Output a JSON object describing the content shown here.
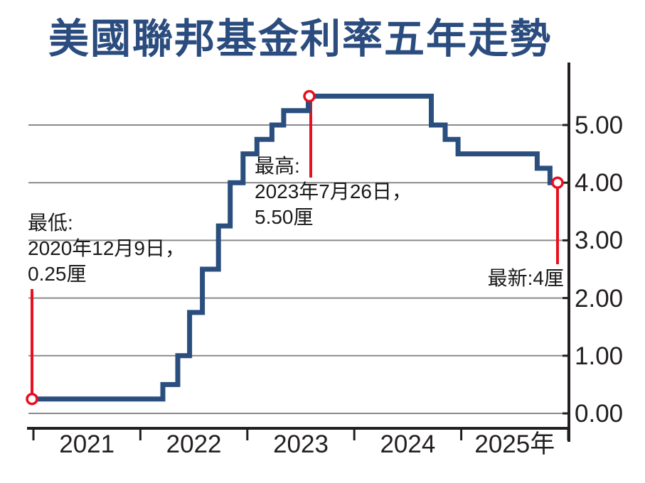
{
  "chart_data": {
    "type": "line",
    "line_style": "step",
    "title": "美國聯邦基金利率五年走勢",
    "x_tick_labels": [
      "2021",
      "2022",
      "2023",
      "2024",
      "2025年"
    ],
    "x_axis_tick_years": [
      2021,
      2022,
      2023,
      2024,
      2025,
      2026
    ],
    "y_tick_labels": [
      "0.00",
      "1.00",
      "2.00",
      "3.00",
      "4.00",
      "5.00"
    ],
    "y_ticks": [
      0,
      1,
      2,
      3,
      4,
      5
    ],
    "xlim": [
      2020.9,
      2026.05
    ],
    "ylim": [
      0,
      6.05
    ],
    "grid": "horizontal-only",
    "y_axis_side": "right",
    "legend": "none",
    "series": [
      {
        "name": "美國聯邦基金利率",
        "color": "#2a4e7e",
        "steps": [
          [
            2020.94,
            0.25
          ],
          [
            2022.21,
            0.5
          ],
          [
            2022.35,
            1.0
          ],
          [
            2022.46,
            1.75
          ],
          [
            2022.58,
            2.5
          ],
          [
            2022.73,
            3.25
          ],
          [
            2022.84,
            4.0
          ],
          [
            2022.96,
            4.5
          ],
          [
            2023.09,
            4.75
          ],
          [
            2023.23,
            5.0
          ],
          [
            2023.34,
            5.25
          ],
          [
            2023.57,
            5.5
          ],
          [
            2024.72,
            5.0
          ],
          [
            2024.85,
            4.75
          ],
          [
            2024.97,
            4.5
          ],
          [
            2025.71,
            4.25
          ],
          [
            2025.83,
            4.0
          ]
        ],
        "end_x": 2025.9
      }
    ],
    "annotations": {
      "low": {
        "label": "最低:",
        "date_line": "2020年12月9日，",
        "value_line": "0.25厘",
        "x": 2020.94,
        "rate": 0.25
      },
      "high": {
        "label": "最高:",
        "date_line": "2023年7月26日，",
        "value_line": "5.50厘",
        "x": 2023.57,
        "rate": 5.5
      },
      "latest": {
        "text": "最新:4厘",
        "x": 2025.9,
        "rate": 4.0
      }
    },
    "colors": {
      "line": "#2a4e7e",
      "marker_red": "#e8101e",
      "grid": "#8a8a8a",
      "axis": "#231f20",
      "title": "#2b4c7e",
      "text": "#1a1a1a"
    }
  }
}
